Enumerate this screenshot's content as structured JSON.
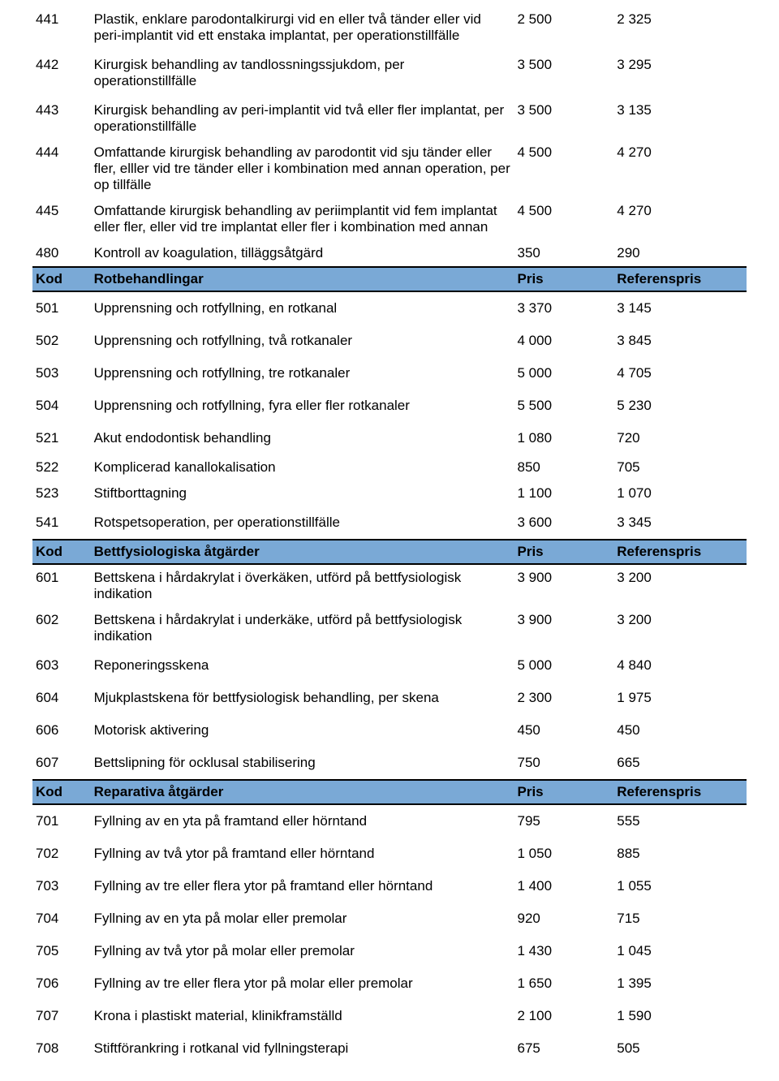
{
  "columns": {
    "code": "Kod",
    "price": "Pris",
    "ref": "Referenspris"
  },
  "section1_rows": [
    {
      "code": "441",
      "desc": "Plastik, enklare parodontalkirurgi vid en eller två tänder eller vid peri-implantit vid ett enstaka implantat, per operationstillfälle",
      "price": "2 500",
      "ref": "2 325",
      "spaced": false
    },
    {
      "code": "442",
      "desc": "Kirurgisk behandling av tandlossningssjukdom, per operationstillfälle",
      "price": "3 500",
      "ref": "3 295",
      "spaced": true
    },
    {
      "code": "443",
      "desc": "Kirurgisk behandling av peri-implantit vid två eller fler implantat, per operationstillfälle",
      "price": "3 500",
      "ref": "3 135",
      "spaced": false
    },
    {
      "code": "444",
      "desc": "Omfattande kirurgisk behandling av parodontit vid sju tänder eller fler, elller vid tre tänder eller i kombination med annan operation, per op tillfälle",
      "price": "4 500",
      "ref": "4 270",
      "spaced": false
    },
    {
      "code": "445",
      "desc": "Omfattande kirurgisk behandling av periimplantit vid fem implantat eller fler, eller vid tre implantat eller fler i kombination med annan",
      "price": "4 500",
      "ref": "4 270",
      "spaced": false
    },
    {
      "code": "480",
      "desc": "Kontroll av koagulation, tilläggsåtgärd",
      "price": "350",
      "ref": "290",
      "spaced": false
    }
  ],
  "section2": {
    "title": "Rotbehandlingar"
  },
  "section2_rows": [
    {
      "code": "501",
      "desc": "Upprensning och rotfyllning, en rotkanal",
      "price": "3 370",
      "ref": "3 145",
      "spaced": true
    },
    {
      "code": "502",
      "desc": "Upprensning och rotfyllning, två rotkanaler",
      "price": "4 000",
      "ref": "3 845",
      "spaced": true
    },
    {
      "code": "503",
      "desc": "Upprensning och rotfyllning, tre rotkanaler",
      "price": "5 000",
      "ref": "4 705",
      "spaced": true
    },
    {
      "code": "504",
      "desc": "Upprensning och rotfyllning, fyra eller fler rotkanaler",
      "price": "5 500",
      "ref": "5 230",
      "spaced": true
    },
    {
      "code": "521",
      "desc": "Akut endodontisk behandling",
      "price": "1 080",
      "ref": "720",
      "spaced": true
    },
    {
      "code": "522",
      "desc": "Komplicerad kanallokalisation",
      "price": "850",
      "ref": "705",
      "spaced": false
    },
    {
      "code": "523",
      "desc": "Stiftborttagning",
      "price": "1 100",
      "ref": "1 070",
      "spaced": false
    },
    {
      "code": "541",
      "desc": "Rotspetsoperation, per operationstillfälle",
      "price": "3 600",
      "ref": "3 345",
      "spaced": true
    }
  ],
  "section3": {
    "title": "Bettfysiologiska åtgärder"
  },
  "section3_rows": [
    {
      "code": "601",
      "desc": "Bettskena i hårdakrylat i överkäken, utförd på bettfysiologisk indikation",
      "price": "3 900",
      "ref": "3 200",
      "spaced": false
    },
    {
      "code": "602",
      "desc": "Bettskena i hårdakrylat i underkäke, utförd på bettfysiologisk indikation",
      "price": "3 900",
      "ref": "3 200",
      "spaced": false
    },
    {
      "code": "603",
      "desc": "Reponeringsskena",
      "price": "5 000",
      "ref": "4 840",
      "spaced": true
    },
    {
      "code": "604",
      "desc": "Mjukplastskena för bettfysiologisk behandling, per skena",
      "price": "2 300",
      "ref": "1 975",
      "spaced": true
    },
    {
      "code": "606",
      "desc": "Motorisk aktivering",
      "price": "450",
      "ref": "450",
      "spaced": true
    },
    {
      "code": "607",
      "desc": "Bettslipning för ocklusal stabilisering",
      "price": "750",
      "ref": "665",
      "spaced": true
    }
  ],
  "section4": {
    "title": "Reparativa åtgärder"
  },
  "section4_rows": [
    {
      "code": "701",
      "desc": "Fyllning av en yta på framtand eller hörntand",
      "price": "795",
      "ref": "555",
      "spaced": true
    },
    {
      "code": "702",
      "desc": "Fyllning av två ytor på framtand eller hörntand",
      "price": "1 050",
      "ref": "885",
      "spaced": true
    },
    {
      "code": "703",
      "desc": "Fyllning av tre eller flera ytor på framtand eller hörntand",
      "price": "1 400",
      "ref": "1 055",
      "spaced": true
    },
    {
      "code": "704",
      "desc": "Fyllning av en yta på molar eller premolar",
      "price": "920",
      "ref": "715",
      "spaced": true
    },
    {
      "code": "705",
      "desc": "Fyllning av två ytor på molar eller premolar",
      "price": "1 430",
      "ref": "1 045",
      "spaced": true
    },
    {
      "code": "706",
      "desc": "Fyllning av tre eller flera ytor på molar eller premolar",
      "price": "1 650",
      "ref": "1 395",
      "spaced": true
    },
    {
      "code": "707",
      "desc": "Krona i plastiskt material, klinikframställd",
      "price": "2 100",
      "ref": "1 590",
      "spaced": true
    },
    {
      "code": "708",
      "desc": "Stiftförankring i rotkanal vid fyllningsterapi",
      "price": "675",
      "ref": "505",
      "spaced": true
    }
  ]
}
